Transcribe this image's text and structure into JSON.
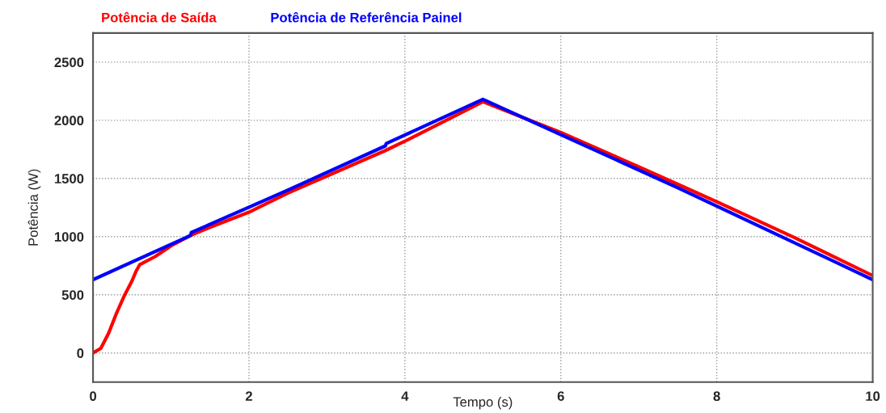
{
  "chart_data": {
    "type": "line",
    "xlabel": "Tempo (s)",
    "ylabel": "Potência (W)",
    "xlim": [
      0,
      10
    ],
    "ylim": [
      -250,
      2750
    ],
    "xticks": [
      0,
      2,
      4,
      6,
      8,
      10
    ],
    "yticks": [
      0,
      500,
      1000,
      1500,
      2000,
      2500
    ],
    "grid": true,
    "legend": "top left",
    "marker": "none",
    "series": [
      {
        "name": "Potência de Saída",
        "color": "#ff0000",
        "x": [
          0,
          0.1,
          0.2,
          0.3,
          0.4,
          0.5,
          0.55,
          0.6,
          0.8,
          1.0,
          1.25,
          1.5,
          2,
          2.5,
          3,
          3.75,
          4,
          5,
          6,
          7,
          7.5,
          8,
          9,
          10
        ],
        "values": [
          0,
          40,
          170,
          340,
          490,
          620,
          700,
          760,
          830,
          920,
          1010,
          1080,
          1210,
          1375,
          1520,
          1740,
          1820,
          2160,
          1895,
          1600,
          1450,
          1300,
          990,
          665
        ]
      },
      {
        "name": "Potência de Referência Painel",
        "color": "#0000ff",
        "x": [
          0,
          1.25,
          1.26,
          2.5,
          3.75,
          3.76,
          5,
          6.25,
          7.5,
          10
        ],
        "values": [
          630,
          1010,
          1035,
          1400,
          1780,
          1800,
          2180,
          1800,
          1420,
          630
        ]
      }
    ]
  }
}
